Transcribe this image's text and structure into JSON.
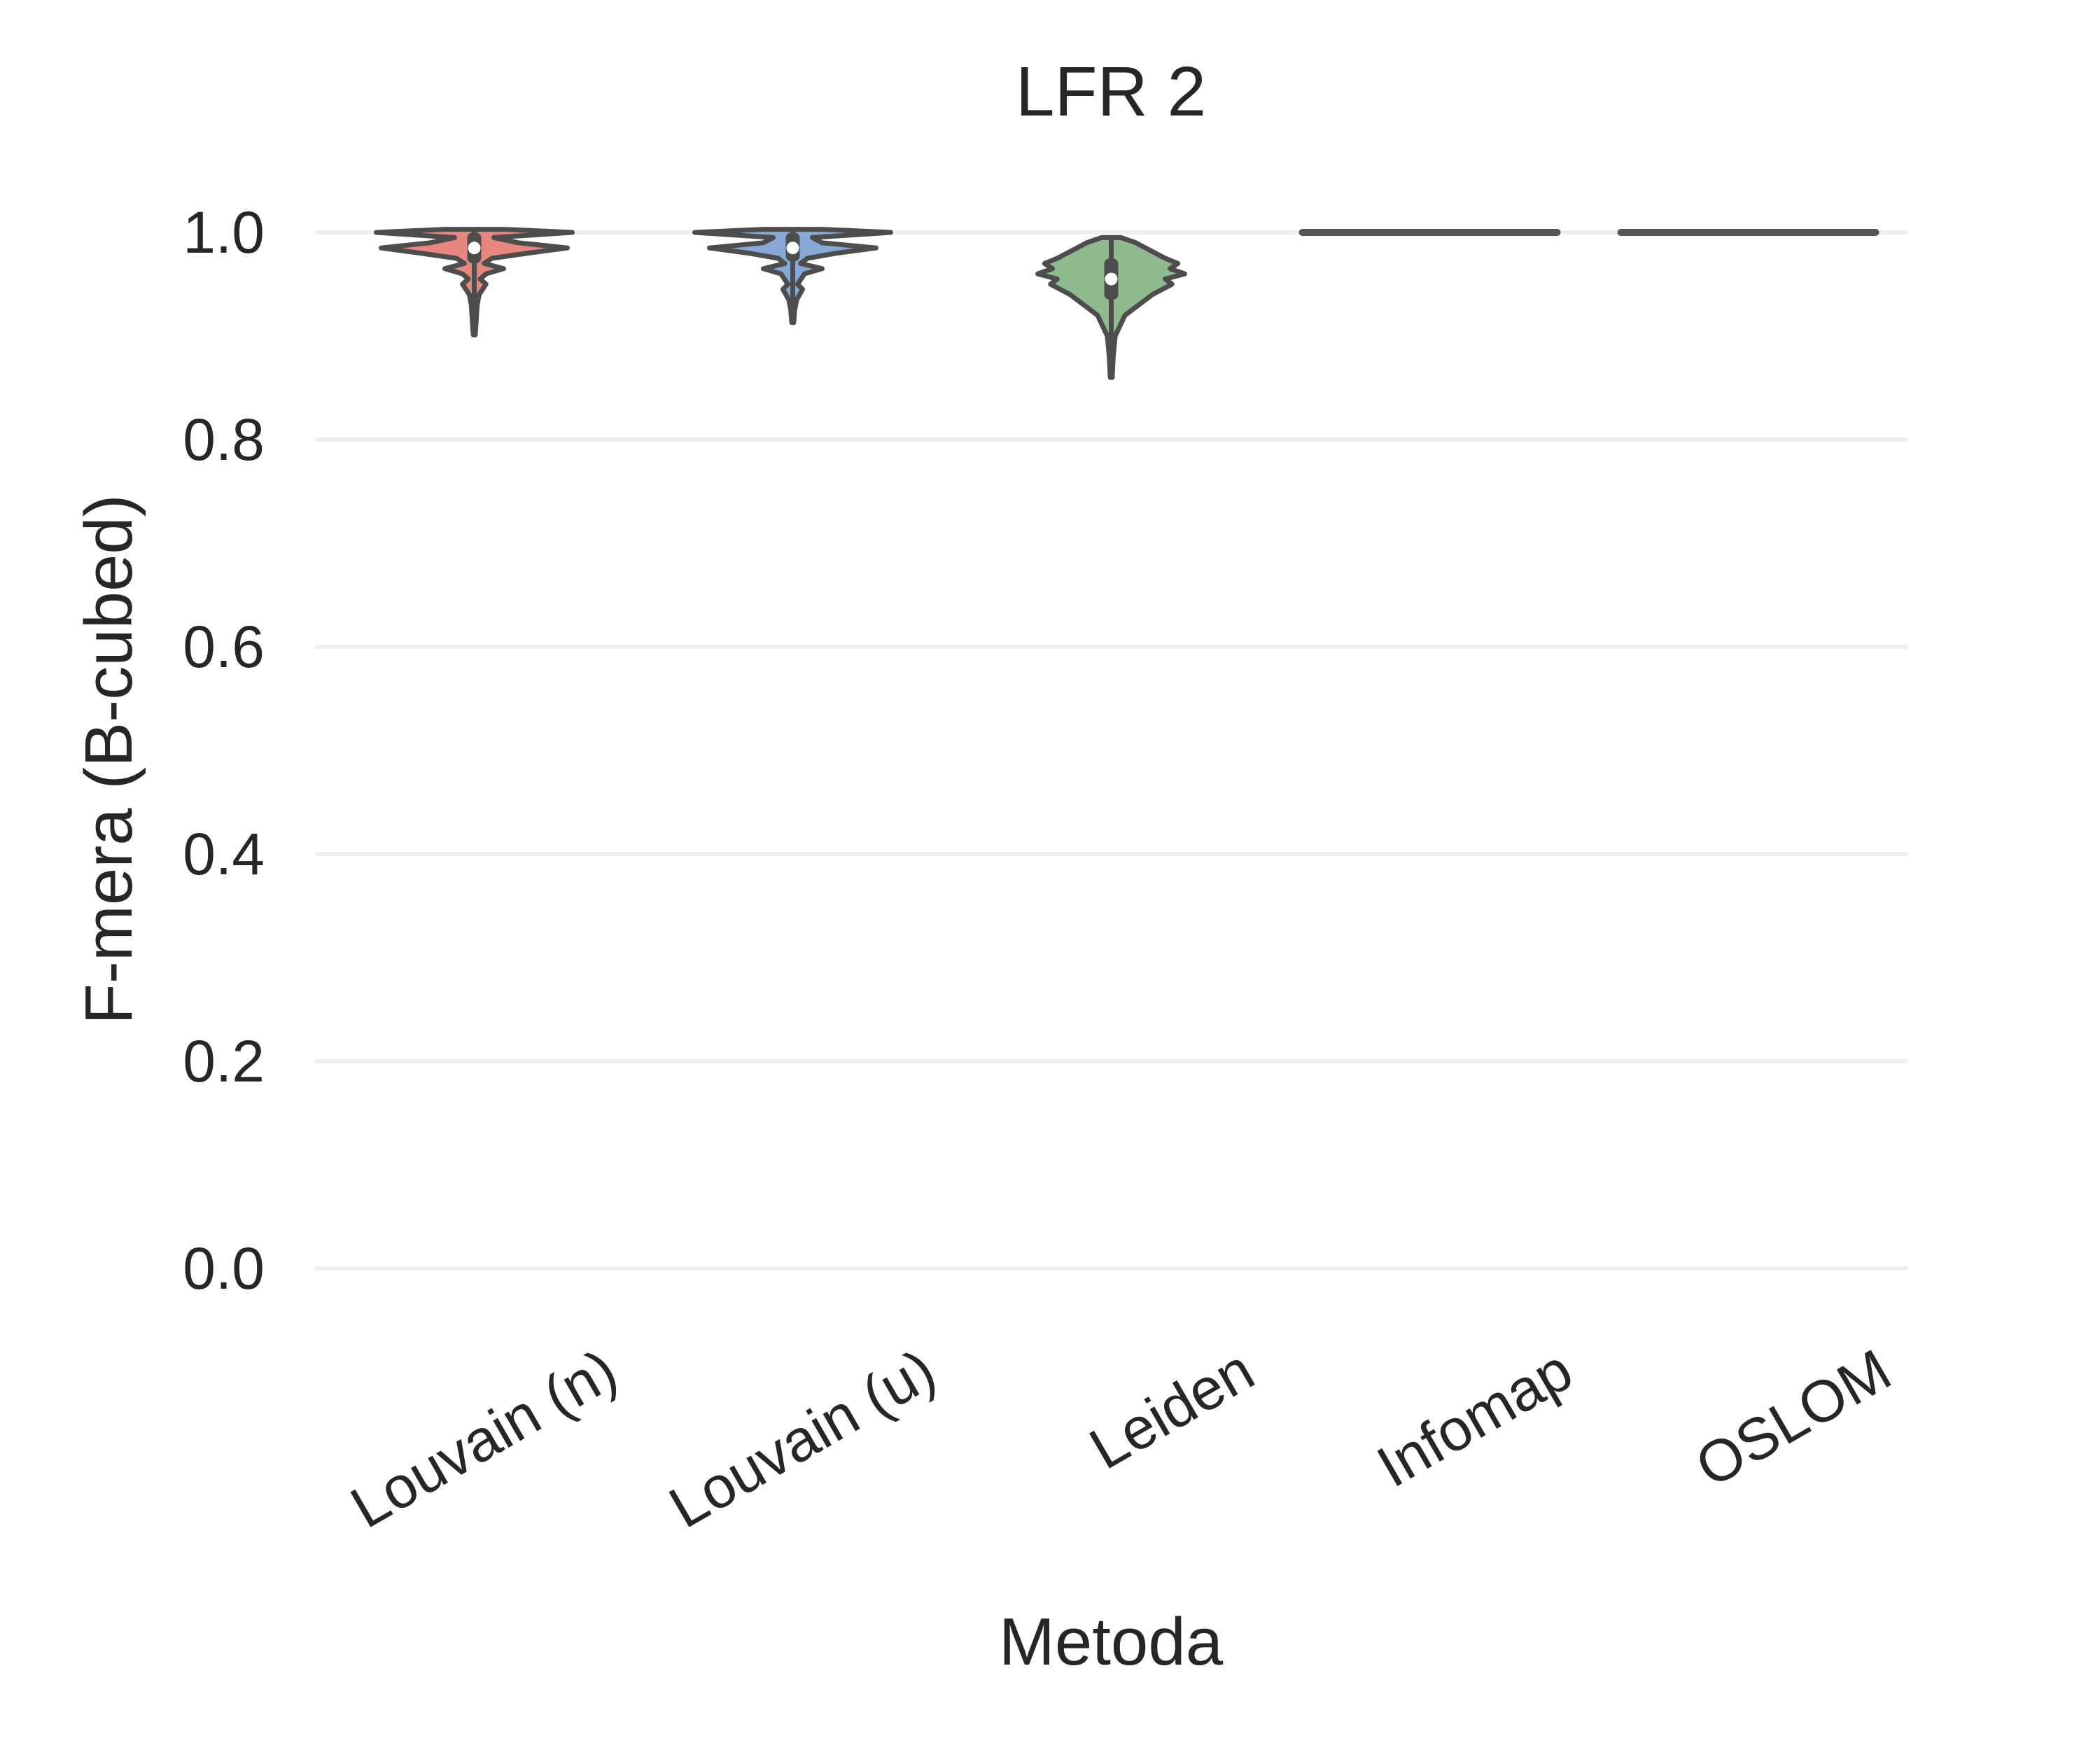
{
  "chart_data": {
    "type": "violin",
    "title": "LFR 2",
    "xlabel": "Metoda",
    "ylabel": "F-mera (B-cubed)",
    "ylim": [
      -0.08,
      1.07
    ],
    "yticks": [
      "0.0",
      "0.2",
      "0.4",
      "0.6",
      "0.8",
      "1.0"
    ],
    "grid": "horizontal",
    "categories": [
      "Louvain (n)",
      "Louvain (u)",
      "Leiden",
      "Infomap",
      "OSLOM"
    ],
    "colors": [
      "#e8877f",
      "#87a9d6",
      "#8fbc8f",
      "#c9a6d8",
      "#e6c27a"
    ],
    "series": [
      {
        "category": "Louvain (n)",
        "min": 0.901,
        "q1": 0.97,
        "median": 0.985,
        "q3": 1.0,
        "max": 1.0,
        "profile": [
          [
            0.901,
            0.01
          ],
          [
            0.915,
            0.02
          ],
          [
            0.93,
            0.03
          ],
          [
            0.94,
            0.05
          ],
          [
            0.95,
            0.12
          ],
          [
            0.955,
            0.06
          ],
          [
            0.96,
            0.12
          ],
          [
            0.965,
            0.3
          ],
          [
            0.97,
            0.1
          ],
          [
            0.975,
            0.18
          ],
          [
            0.98,
            0.55
          ],
          [
            0.985,
            0.95
          ],
          [
            0.99,
            0.45
          ],
          [
            0.995,
            0.2
          ],
          [
            1.0,
            1.0
          ],
          [
            1.003,
            0.3
          ]
        ]
      },
      {
        "category": "Louvain (u)",
        "min": 0.913,
        "q1": 0.972,
        "median": 0.985,
        "q3": 1.0,
        "max": 1.0,
        "profile": [
          [
            0.913,
            0.01
          ],
          [
            0.925,
            0.02
          ],
          [
            0.935,
            0.04
          ],
          [
            0.945,
            0.1
          ],
          [
            0.95,
            0.05
          ],
          [
            0.96,
            0.12
          ],
          [
            0.965,
            0.3
          ],
          [
            0.97,
            0.08
          ],
          [
            0.975,
            0.15
          ],
          [
            0.98,
            0.45
          ],
          [
            0.985,
            0.85
          ],
          [
            0.99,
            0.3
          ],
          [
            0.995,
            0.2
          ],
          [
            1.0,
            1.0
          ],
          [
            1.003,
            0.3
          ]
        ]
      },
      {
        "category": "Leiden",
        "min": 0.86,
        "q1": 0.935,
        "median": 0.955,
        "q3": 0.975,
        "max": 0.995,
        "profile": [
          [
            0.86,
            0.01
          ],
          [
            0.88,
            0.02
          ],
          [
            0.9,
            0.04
          ],
          [
            0.92,
            0.14
          ],
          [
            0.93,
            0.28
          ],
          [
            0.94,
            0.42
          ],
          [
            0.95,
            0.62
          ],
          [
            0.955,
            0.55
          ],
          [
            0.96,
            0.75
          ],
          [
            0.965,
            0.6
          ],
          [
            0.97,
            0.68
          ],
          [
            0.975,
            0.55
          ],
          [
            0.98,
            0.45
          ],
          [
            0.985,
            0.35
          ],
          [
            0.99,
            0.25
          ],
          [
            0.995,
            0.1
          ]
        ]
      },
      {
        "category": "Infomap",
        "min": 1.0,
        "q1": 1.0,
        "median": 1.0,
        "q3": 1.0,
        "max": 1.0,
        "profile": []
      },
      {
        "category": "OSLOM",
        "min": 1.0,
        "q1": 1.0,
        "median": 1.0,
        "q3": 1.0,
        "max": 1.0,
        "profile": []
      }
    ]
  }
}
